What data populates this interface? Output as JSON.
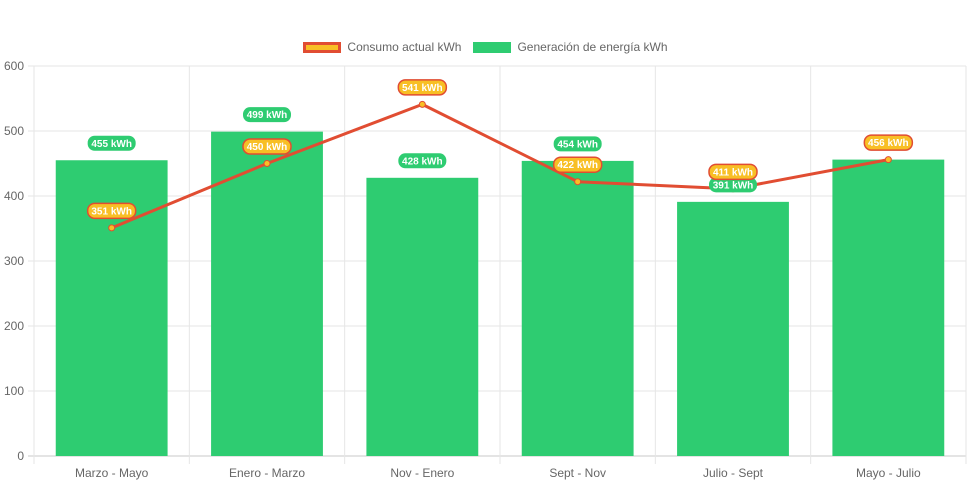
{
  "chart_data": {
    "type": "bar",
    "categories": [
      "Marzo - Mayo",
      "Enero - Marzo",
      "Nov - Enero",
      "Sept - Nov",
      "Julio - Sept",
      "Mayo - Julio"
    ],
    "ylim": [
      0,
      600
    ],
    "yticks": [
      0,
      100,
      200,
      300,
      400,
      500,
      600
    ],
    "grid": true,
    "legend_position": "top-center",
    "series": [
      {
        "name": "Consumo actual kWh",
        "type": "line",
        "values": [
          351,
          450,
          541,
          422,
          411,
          456
        ],
        "labels": [
          "351 kWh",
          "450 kWh",
          "541 kWh",
          "422 kWh",
          "411 kWh",
          "456 kWh"
        ],
        "color": "#e14d32",
        "fill_color": "#f8bf25"
      },
      {
        "name": "Generación de energía kWh",
        "type": "bar",
        "values": [
          455,
          499,
          428,
          454,
          391,
          456
        ],
        "labels": [
          "455 kWh",
          "499 kWh",
          "428 kWh",
          "454 kWh",
          "391 kWh",
          "456 kWh"
        ],
        "color": "#2ecc71"
      }
    ]
  }
}
